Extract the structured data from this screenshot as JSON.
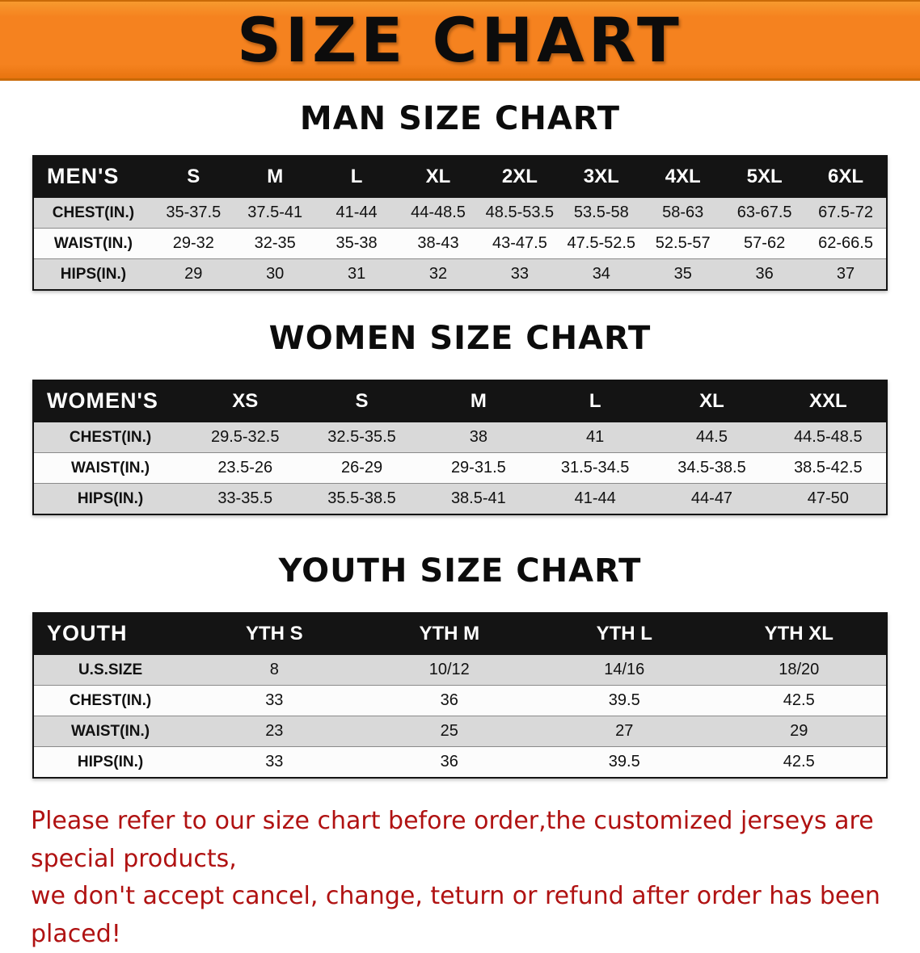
{
  "banner": {
    "title": "SIZE CHART",
    "bg_color": "#f5821f",
    "text_color": "#0c0c0c"
  },
  "chart_data": [
    {
      "type": "table",
      "title": "MAN SIZE CHART",
      "corner": "MEN'S",
      "columns": [
        "S",
        "M",
        "L",
        "XL",
        "2XL",
        "3XL",
        "4XL",
        "5XL",
        "6XL"
      ],
      "rows": [
        {
          "label": "CHEST(IN.)",
          "values": [
            "35-37.5",
            "37.5-41",
            "41-44",
            "44-48.5",
            "48.5-53.5",
            "53.5-58",
            "58-63",
            "63-67.5",
            "67.5-72"
          ]
        },
        {
          "label": "WAIST(IN.)",
          "values": [
            "29-32",
            "32-35",
            "35-38",
            "38-43",
            "43-47.5",
            "47.5-52.5",
            "52.5-57",
            "57-62",
            "62-66.5"
          ]
        },
        {
          "label": "HIPS(IN.)",
          "values": [
            "29",
            "30",
            "31",
            "32",
            "33",
            "34",
            "35",
            "36",
            "37"
          ]
        }
      ]
    },
    {
      "type": "table",
      "title": "WOMEN SIZE CHART",
      "corner": "WOMEN'S",
      "columns": [
        "XS",
        "S",
        "M",
        "L",
        "XL",
        "XXL"
      ],
      "rows": [
        {
          "label": "CHEST(IN.)",
          "values": [
            "29.5-32.5",
            "32.5-35.5",
            "38",
            "41",
            "44.5",
            "44.5-48.5"
          ]
        },
        {
          "label": "WAIST(IN.)",
          "values": [
            "23.5-26",
            "26-29",
            "29-31.5",
            "31.5-34.5",
            "34.5-38.5",
            "38.5-42.5"
          ]
        },
        {
          "label": "HIPS(IN.)",
          "values": [
            "33-35.5",
            "35.5-38.5",
            "38.5-41",
            "41-44",
            "44-47",
            "47-50"
          ]
        }
      ]
    },
    {
      "type": "table",
      "title": "YOUTH SIZE CHART",
      "corner": "YOUTH",
      "columns": [
        "YTH S",
        "YTH M",
        "YTH L",
        "YTH XL"
      ],
      "rows": [
        {
          "label": "U.S.SIZE",
          "values": [
            "8",
            "10/12",
            "14/16",
            "18/20"
          ]
        },
        {
          "label": "CHEST(IN.)",
          "values": [
            "33",
            "36",
            "39.5",
            "42.5"
          ]
        },
        {
          "label": "WAIST(IN.)",
          "values": [
            "23",
            "25",
            "27",
            "29"
          ]
        },
        {
          "label": "HIPS(IN.)",
          "values": [
            "33",
            "36",
            "39.5",
            "42.5"
          ]
        }
      ]
    }
  ],
  "disclaimer": {
    "line1": "Please refer to our size chart before order,the customized jerseys are special products,",
    "line2": "we don't accept cancel, change, teturn or refund after order has been placed!",
    "text_color": "#b01212"
  }
}
